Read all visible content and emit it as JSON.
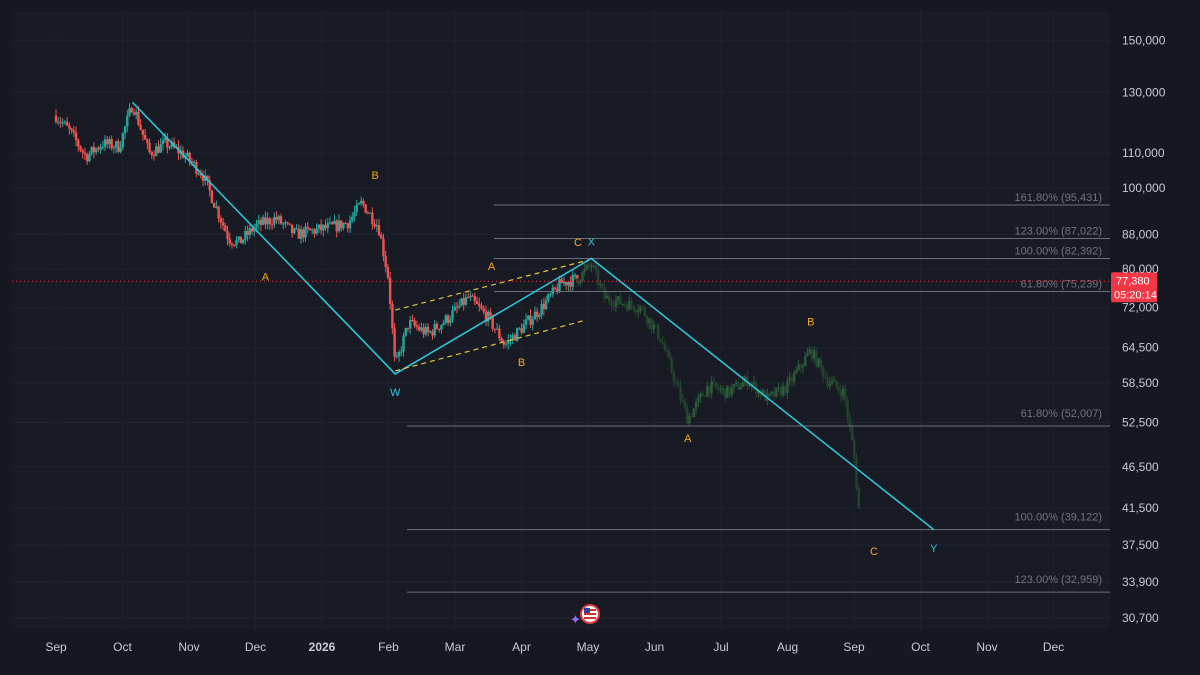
{
  "chart_data": {
    "type": "candlestick",
    "y_axis": {
      "scale": "log",
      "range": [
        29700,
        163000
      ],
      "ticks": [
        "150,000",
        "130,000",
        "110,000",
        "100,000",
        "88,000",
        "80,000",
        "72,000",
        "64,500",
        "58,500",
        "52,500",
        "46,500",
        "41,500",
        "37,500",
        "33,900",
        "30,700"
      ],
      "tick_values": [
        150000,
        130000,
        110000,
        100000,
        88000,
        80000,
        72000,
        64500,
        58500,
        52500,
        46500,
        41500,
        37500,
        33900,
        30700
      ]
    },
    "x_axis": {
      "labels": [
        "Sep",
        "Oct",
        "Nov",
        "Dec",
        "2026",
        "Feb",
        "Mar",
        "Apr",
        "May",
        "Jun",
        "Jul",
        "Aug",
        "Sep",
        "Oct",
        "Nov",
        "Dec"
      ],
      "label_month_index": [
        0,
        1,
        2,
        3,
        4,
        5,
        6,
        7,
        8,
        9,
        10,
        11,
        12,
        13,
        14,
        15
      ],
      "bold_labels": [
        "2026"
      ]
    },
    "current_price": {
      "label": "77,380",
      "value": 77380,
      "countdown": "05:20:14",
      "color": "#f23645"
    },
    "fib_levels_upper": [
      {
        "label": "161.80% (95,431)",
        "value": 95431
      },
      {
        "label": "123.00% (87,022)",
        "value": 87022
      },
      {
        "label": "100.00% (82,392)",
        "value": 82392
      },
      {
        "label": "61.80% (75,239)",
        "value": 75239
      }
    ],
    "fib_levels_lower": [
      {
        "label": "61.80% (52,007)",
        "value": 52007
      },
      {
        "label": "100.00% (39,122)",
        "value": 39122
      },
      {
        "label": "123.00% (32,959)",
        "value": 32959
      }
    ],
    "wave_path": [
      {
        "t": 1.15,
        "v": 126500
      },
      {
        "t": 5.1,
        "v": 60000
      },
      {
        "t": 8.05,
        "v": 82392
      },
      {
        "t": 13.2,
        "v": 39122
      }
    ],
    "channel": {
      "upper": [
        {
          "t": 5.1,
          "v": 71500
        },
        {
          "t": 8.0,
          "v": 82000
        }
      ],
      "lower": [
        {
          "t": 5.1,
          "v": 60500
        },
        {
          "t": 7.95,
          "v": 69500
        }
      ]
    },
    "wave_labels": [
      {
        "text": "A",
        "t": 3.15,
        "v": 77500,
        "color": "#f5a623"
      },
      {
        "text": "B",
        "t": 4.8,
        "v": 102500,
        "color": "#f5a623"
      },
      {
        "text": "W",
        "t": 5.1,
        "v": 56500,
        "color": "#2ec4d6"
      },
      {
        "text": "A",
        "t": 6.55,
        "v": 79800,
        "color": "#f5a623"
      },
      {
        "text": "B",
        "t": 7.0,
        "v": 61300,
        "color": "#f5a623"
      },
      {
        "text": "C",
        "t": 7.85,
        "v": 85200,
        "color": "#f5a623"
      },
      {
        "text": "X",
        "t": 8.05,
        "v": 85400,
        "color": "#2ec4d6"
      },
      {
        "text": "A",
        "t": 9.5,
        "v": 49800,
        "color": "#f5a623"
      },
      {
        "text": "B",
        "t": 11.35,
        "v": 68500,
        "color": "#f5a623"
      },
      {
        "text": "C",
        "t": 12.3,
        "v": 36500,
        "color": "#f5a623"
      },
      {
        "text": "Y",
        "t": 13.2,
        "v": 36800,
        "color": "#2ec4d6"
      }
    ],
    "price_path_actual": [
      {
        "t": 0.0,
        "v": 122000
      },
      {
        "t": 0.2,
        "v": 117000
      },
      {
        "t": 0.45,
        "v": 109000
      },
      {
        "t": 0.7,
        "v": 113000
      },
      {
        "t": 0.95,
        "v": 112000
      },
      {
        "t": 1.15,
        "v": 126000
      },
      {
        "t": 1.4,
        "v": 110000
      },
      {
        "t": 1.65,
        "v": 113000
      },
      {
        "t": 1.9,
        "v": 110000
      },
      {
        "t": 2.2,
        "v": 104000
      },
      {
        "t": 2.6,
        "v": 87000
      },
      {
        "t": 2.75,
        "v": 86000
      },
      {
        "t": 3.0,
        "v": 90000
      },
      {
        "t": 3.3,
        "v": 92000
      },
      {
        "t": 3.6,
        "v": 88000
      },
      {
        "t": 3.9,
        "v": 89000
      },
      {
        "t": 4.2,
        "v": 90000
      },
      {
        "t": 4.4,
        "v": 91000
      },
      {
        "t": 4.6,
        "v": 96000
      },
      {
        "t": 4.85,
        "v": 90000
      },
      {
        "t": 5.0,
        "v": 78000
      },
      {
        "t": 5.1,
        "v": 61000
      },
      {
        "t": 5.3,
        "v": 69000
      },
      {
        "t": 5.6,
        "v": 67000
      },
      {
        "t": 5.9,
        "v": 70000
      },
      {
        "t": 6.2,
        "v": 74000
      },
      {
        "t": 6.5,
        "v": 70000
      },
      {
        "t": 6.75,
        "v": 65000
      },
      {
        "t": 7.0,
        "v": 68000
      },
      {
        "t": 7.3,
        "v": 72000
      },
      {
        "t": 7.6,
        "v": 77000
      },
      {
        "t": 7.85,
        "v": 78000
      }
    ],
    "price_path_projection": [
      {
        "t": 7.85,
        "v": 78000
      },
      {
        "t": 8.05,
        "v": 81000
      },
      {
        "t": 8.25,
        "v": 74000
      },
      {
        "t": 8.5,
        "v": 73000
      },
      {
        "t": 8.8,
        "v": 72000
      },
      {
        "t": 9.1,
        "v": 66000
      },
      {
        "t": 9.5,
        "v": 53000
      },
      {
        "t": 9.8,
        "v": 58000
      },
      {
        "t": 10.1,
        "v": 57000
      },
      {
        "t": 10.4,
        "v": 59000
      },
      {
        "t": 10.7,
        "v": 56000
      },
      {
        "t": 11.0,
        "v": 58000
      },
      {
        "t": 11.35,
        "v": 64000
      },
      {
        "t": 11.6,
        "v": 59000
      },
      {
        "t": 11.85,
        "v": 57000
      },
      {
        "t": 12.0,
        "v": 48000
      },
      {
        "t": 12.1,
        "v": 39000
      }
    ],
    "colors": {
      "up": "#26a69a",
      "down": "#ef5350",
      "projection": "#2d5a3a",
      "wave_line": "#2ec4d6",
      "channel": "#e0c341",
      "fib_line": "#6b707b"
    }
  },
  "overlay": {
    "icon": "us-flag-icon",
    "sparkle_icon": "sparkle-icon"
  }
}
